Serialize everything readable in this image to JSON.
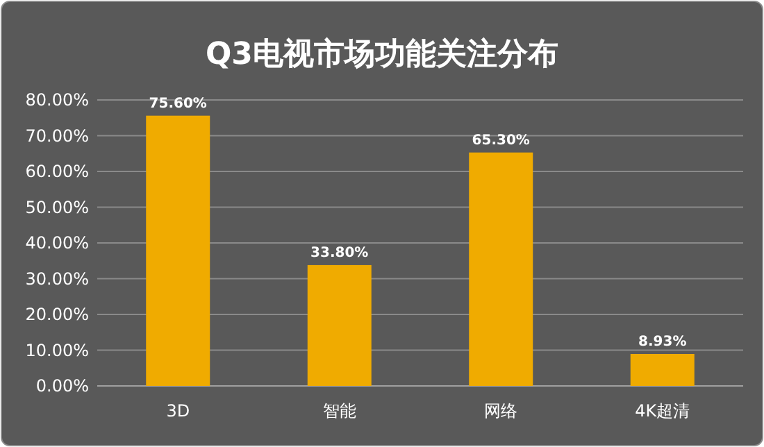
{
  "chart_data": {
    "type": "bar",
    "title": "Q3电视市场功能关注分布",
    "categories": [
      "3D",
      "智能",
      "网络",
      "4K超清"
    ],
    "values": [
      75.6,
      33.8,
      65.3,
      8.93
    ],
    "value_labels": [
      "75.60%",
      "33.80%",
      "65.30%",
      "8.93%"
    ],
    "color": "#f0ab00",
    "ylim": [
      0,
      80
    ],
    "yticks": [
      {
        "value": 0,
        "label": "0.00%"
      },
      {
        "value": 10,
        "label": "10.00%"
      },
      {
        "value": 20,
        "label": "20.00%"
      },
      {
        "value": 30,
        "label": "30.00%"
      },
      {
        "value": 40,
        "label": "40.00%"
      },
      {
        "value": 50,
        "label": "50.00%"
      },
      {
        "value": 60,
        "label": "60.00%"
      },
      {
        "value": 70,
        "label": "70.00%"
      },
      {
        "value": 80,
        "label": "80.00%"
      }
    ],
    "grid": "y"
  }
}
